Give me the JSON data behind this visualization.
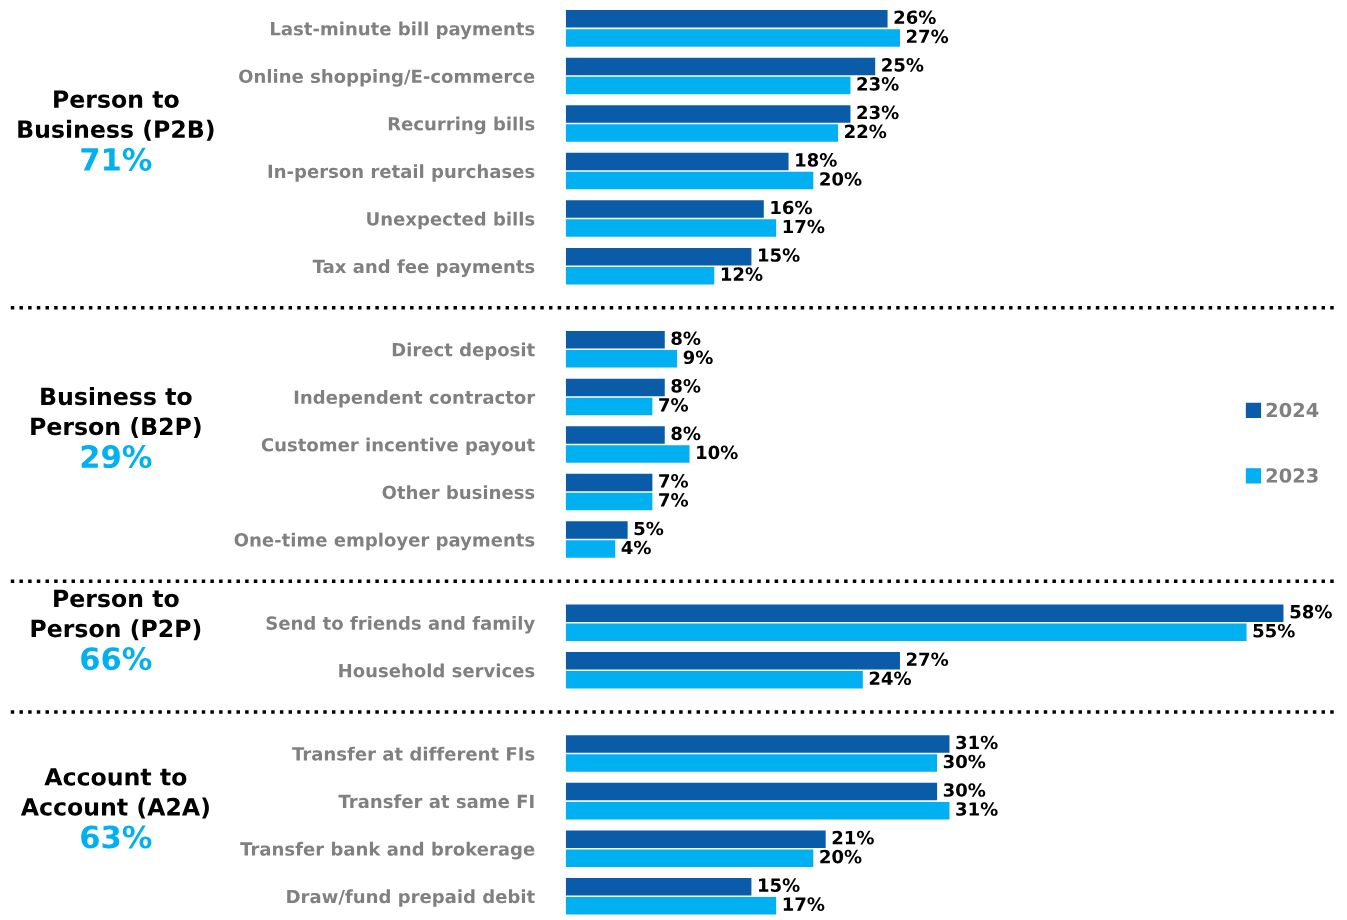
{
  "chart_data": [
    {
      "type": "bar",
      "orientation": "horizontal",
      "title": "Person to\nBusiness (P2B)",
      "subtitle": "71%",
      "categories": [
        "Last-minute bill payments",
        "Online shopping/E-commerce",
        "Recurring bills",
        "In-person retail purchases",
        "Unexpected bills",
        "Tax and fee payments"
      ],
      "series": [
        {
          "color": "#0a5ca8",
          "values": [
            26,
            25,
            23,
            18,
            16,
            15
          ],
          "value_labels": [
            "26%",
            "25%",
            "23%",
            "18%",
            "16%",
            "15%"
          ]
        },
        {
          "color": "#00b0f0",
          "values": [
            27,
            23,
            22,
            20,
            17,
            12
          ],
          "value_labels": [
            "27%",
            "23%",
            "22%",
            "20%",
            "17%",
            "12%"
          ]
        }
      ],
      "tick_labels": "y",
      "grid": false,
      "legend": false
    },
    {
      "type": "bar",
      "orientation": "horizontal",
      "title": "Business to\nPerson (B2P)",
      "subtitle": "29%",
      "categories": [
        "Direct deposit",
        "Independent contractor",
        "Customer incentive payout",
        "Other business",
        "One-time employer payments"
      ],
      "series": [
        {
          "name": "2024",
          "color": "#0a5ca8",
          "values": [
            8,
            8,
            8,
            7,
            5
          ],
          "value_labels": [
            "8%",
            "8%",
            "8%",
            "7%",
            "5%"
          ]
        },
        {
          "name": "2023",
          "color": "#00b0f0",
          "values": [
            9,
            7,
            10,
            7,
            4
          ],
          "value_labels": [
            "9%",
            "7%",
            "10%",
            "7%",
            "4%"
          ]
        }
      ],
      "tick_labels": "y",
      "grid": false,
      "legend": "right"
    },
    {
      "type": "bar",
      "orientation": "horizontal",
      "title": "Person to\nPerson (P2P)",
      "subtitle": "66%",
      "categories": [
        "Send to friends and family",
        "Household services"
      ],
      "series": [
        {
          "color": "#0a5ca8",
          "values": [
            58,
            27
          ],
          "value_labels": [
            "58%",
            "27%"
          ]
        },
        {
          "color": "#00b0f0",
          "values": [
            55,
            24
          ],
          "value_labels": [
            "55%",
            "24%"
          ]
        }
      ],
      "tick_labels": "y",
      "grid": false,
      "legend": false
    },
    {
      "type": "bar",
      "orientation": "horizontal",
      "title": "Account to\nAccount (A2A)",
      "subtitle": "63%",
      "categories": [
        "Transfer at different FIs",
        "Transfer at same FI",
        "Transfer bank and brokerage",
        "Draw/fund prepaid debit"
      ],
      "series": [
        {
          "color": "#0a5ca8",
          "values": [
            31,
            30,
            21,
            15
          ],
          "value_labels": [
            "31%",
            "30%",
            "21%",
            "15%"
          ]
        },
        {
          "color": "#00b0f0",
          "values": [
            30,
            31,
            20,
            17
          ],
          "value_labels": [
            "30%",
            "31%",
            "20%",
            "17%"
          ]
        }
      ],
      "tick_labels": "y",
      "grid": false,
      "legend": false
    }
  ]
}
